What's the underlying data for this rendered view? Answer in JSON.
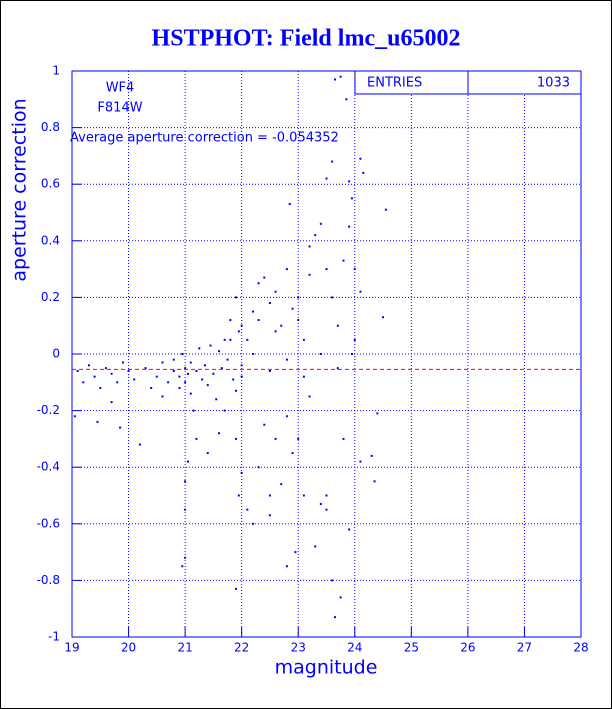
{
  "chart_data": {
    "type": "scatter",
    "title": "HSTPHOT: Field lmc_u65002",
    "x_label": "magnitude",
    "y_label": "aperture correction",
    "annotations": [
      "WF4",
      "F814W",
      "Average aperture correction = -0.054352"
    ],
    "stats": {
      "label": "ENTRIES",
      "value": 1033
    },
    "reference_line": {
      "value": -0.054352,
      "color": "#ff0000"
    },
    "color": "#0000ff",
    "grid": true,
    "xlim": [
      19,
      28
    ],
    "ylim": [
      -1,
      1
    ],
    "xticks": [
      19,
      20,
      21,
      22,
      23,
      24,
      25,
      26,
      27,
      28
    ],
    "yticks": [
      -1,
      -0.8,
      -0.6,
      -0.4,
      -0.2,
      0,
      0.2,
      0.4,
      0.6,
      0.8,
      1
    ],
    "x": [
      19.1,
      19.2,
      19.3,
      19.4,
      19.5,
      19.6,
      19.7,
      19.8,
      19.9,
      19.05,
      19.45,
      19.7,
      19.85,
      20.0,
      20.1,
      20.2,
      20.3,
      20.4,
      20.5,
      20.6,
      20.6,
      20.7,
      20.8,
      20.8,
      20.9,
      20.9,
      20.95,
      21.0,
      21.0,
      21.05,
      21.1,
      21.1,
      21.15,
      21.2,
      21.25,
      21.3,
      21.35,
      21.4,
      21.45,
      21.5,
      21.55,
      21.6,
      21.65,
      21.7,
      21.75,
      21.8,
      21.85,
      21.9,
      21.95,
      22.0,
      21.05,
      21.0,
      21.0,
      20.95,
      21.0,
      21.2,
      21.4,
      21.6,
      21.9,
      21.95,
      22.0,
      22.2,
      22.3,
      22.4,
      22.5,
      22.6,
      22.7,
      22.8,
      22.9,
      22.95,
      23.0,
      23.1,
      23.2,
      23.3,
      23.4,
      23.5,
      23.5,
      23.6,
      23.65,
      23.75,
      23.8,
      23.9,
      24.1,
      24.3,
      24.35,
      24.4,
      22.8,
      22.1,
      21.9,
      22.5,
      21.9,
      21.8,
      22.0,
      22.1,
      22.2,
      22.3,
      22.4,
      22.5,
      22.6,
      22.7,
      22.8,
      22.85,
      22.9,
      23.0,
      23.1,
      23.2,
      23.3,
      23.4,
      23.5,
      23.6,
      23.7,
      23.2,
      23.0,
      22.6,
      22.3,
      23.65,
      23.75,
      23.85,
      23.6,
      23.5,
      23.9,
      23.95,
      24.1,
      24.15,
      24.55,
      24.5,
      24.1,
      24.0,
      23.9,
      23.8,
      24.0,
      23.95,
      23.7,
      23.4,
      23.1,
      22.8,
      22.5,
      22.2,
      22.0,
      21.7
    ],
    "values": [
      -0.06,
      -0.1,
      -0.04,
      -0.08,
      -0.12,
      -0.05,
      -0.07,
      -0.1,
      -0.03,
      -0.22,
      -0.24,
      -0.17,
      -0.26,
      -0.06,
      -0.09,
      -0.32,
      -0.05,
      -0.12,
      -0.08,
      -0.03,
      -0.15,
      -0.1,
      -0.06,
      -0.02,
      -0.08,
      -0.12,
      0.0,
      -0.05,
      -0.1,
      -0.07,
      -0.03,
      -0.14,
      -0.2,
      -0.06,
      0.02,
      -0.09,
      -0.04,
      -0.11,
      0.03,
      -0.07,
      -0.16,
      0.01,
      -0.05,
      -0.2,
      -0.02,
      0.05,
      -0.09,
      -0.13,
      0.08,
      -0.04,
      -0.38,
      -0.45,
      -0.72,
      -0.75,
      -0.55,
      -0.3,
      -0.35,
      -0.28,
      -0.3,
      -0.5,
      -0.42,
      -0.6,
      -0.4,
      -0.25,
      -0.5,
      -0.3,
      -0.46,
      -0.22,
      -0.35,
      -0.7,
      -0.3,
      -0.5,
      -0.15,
      -0.68,
      -0.53,
      -0.5,
      -0.55,
      -0.8,
      -0.93,
      -0.86,
      -0.3,
      -0.62,
      -0.38,
      -0.36,
      -0.45,
      -0.21,
      -0.75,
      -0.55,
      -0.83,
      -0.57,
      0.2,
      0.12,
      0.1,
      0.05,
      0.15,
      0.25,
      0.27,
      0.18,
      0.22,
      0.1,
      0.3,
      0.53,
      0.16,
      0.12,
      0.05,
      0.38,
      0.42,
      0.46,
      0.3,
      0.2,
      0.1,
      0.28,
      0.2,
      0.08,
      0.12,
      0.97,
      0.98,
      0.9,
      0.68,
      0.62,
      0.61,
      0.55,
      0.69,
      0.64,
      0.51,
      0.13,
      0.22,
      0.3,
      0.45,
      0.33,
      0.05,
      0.0,
      -0.05,
      0.0,
      -0.08,
      -0.02,
      -0.06,
      0.0,
      -0.08,
      0.05
    ]
  }
}
